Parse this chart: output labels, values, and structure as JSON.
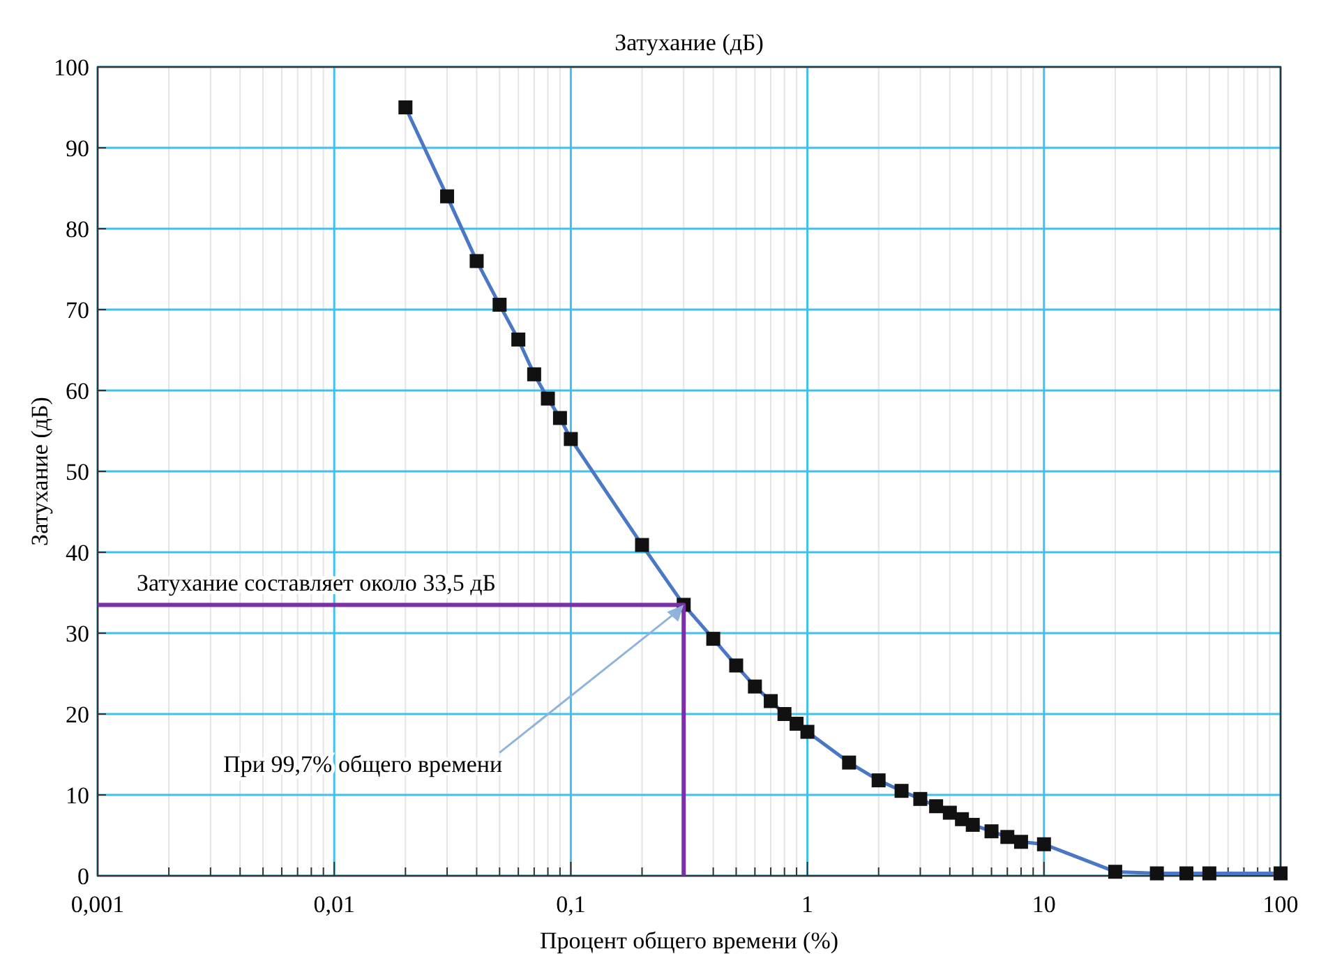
{
  "chart_data": {
    "type": "line",
    "title": "Затухание (дБ)",
    "xlabel": "Процент общего времени (%)",
    "ylabel": "Затухание (дБ)",
    "log": "x",
    "grid": true,
    "marker": "square",
    "line_style": "solid",
    "xlim": [
      0.001,
      100
    ],
    "xticks": [
      {
        "value": 0.001,
        "label": "0,001"
      },
      {
        "value": 0.01,
        "label": "0,01"
      },
      {
        "value": 0.1,
        "label": "0,1"
      },
      1,
      10,
      100
    ],
    "ylim": [
      0,
      100
    ],
    "yticks": [
      0,
      10,
      20,
      30,
      40,
      50,
      60,
      70,
      80,
      90,
      100
    ],
    "series": [
      {
        "color": "#4a78c6",
        "x": [
          0.02,
          0.03,
          0.04,
          0.05,
          0.06,
          0.07,
          0.08,
          0.09,
          0.1,
          0.2,
          0.3,
          0.4,
          0.5,
          0.6,
          0.7,
          0.8,
          0.9,
          1,
          1.5,
          2,
          2.5,
          3,
          3.5,
          4,
          4.5,
          5,
          6,
          7,
          8,
          10,
          20,
          30,
          40,
          50,
          100
        ],
        "values": [
          95,
          84,
          76,
          70.6,
          66.3,
          62,
          59,
          56.6,
          54,
          40.9,
          33.5,
          29.3,
          26,
          23.4,
          21.6,
          20,
          18.8,
          17.8,
          14,
          11.8,
          10.5,
          9.5,
          8.6,
          7.8,
          7,
          6.3,
          5.5,
          4.8,
          4.2,
          3.9,
          0.5,
          0.3,
          0.3,
          0.3,
          0.3
        ]
      },
      {
        "type": "line",
        "marker": "none",
        "color": "#7b2fa8",
        "x": [
          0.001,
          0.3,
          0.3
        ],
        "values": [
          33.5,
          33.5,
          0
        ]
      }
    ],
    "annotations": [
      {
        "text": "Затухание составляет около 33,5 дБ",
        "y": 33.5
      },
      {
        "text": "При 99,7% общего времени",
        "x": 0.3,
        "y": 33.5
      }
    ]
  }
}
